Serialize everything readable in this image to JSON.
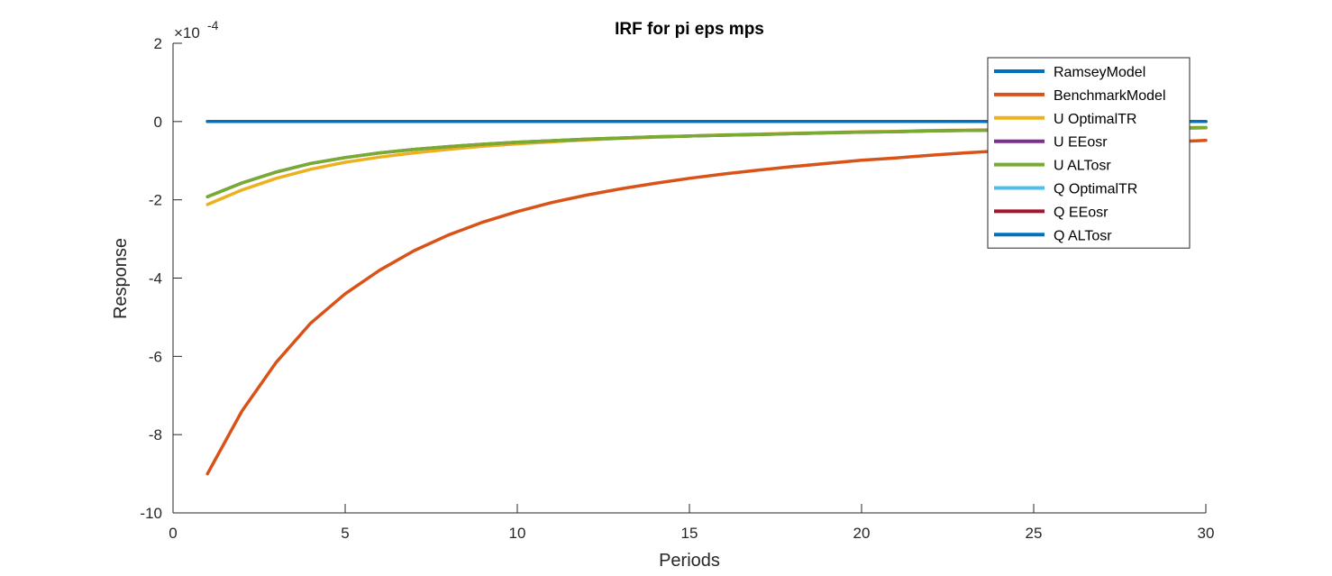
{
  "chart_data": {
    "type": "line",
    "title": "IRF for pi eps mps",
    "xlabel": "Periods",
    "ylabel": "Response",
    "xlim": [
      0,
      30
    ],
    "ylim": [
      -10,
      2
    ],
    "xticks": [
      0,
      5,
      10,
      15,
      20,
      25,
      30
    ],
    "yticks": [
      2,
      0,
      -2,
      -4,
      -6,
      -8,
      -10
    ],
    "xtick_labels": [
      "0",
      "5",
      "10",
      "15",
      "20",
      "25",
      "30"
    ],
    "ytick_labels": [
      "2",
      "0",
      "-2",
      "-4",
      "-6",
      "-8",
      "-10"
    ],
    "y_exponent_label": "×10",
    "y_exponent_power": "-4",
    "y_scale_factor": 0.0001,
    "grid": false,
    "legend_placement": "top-right",
    "x": [
      1,
      2,
      3,
      4,
      5,
      6,
      7,
      8,
      9,
      10,
      11,
      12,
      13,
      14,
      15,
      16,
      17,
      18,
      19,
      20,
      21,
      22,
      23,
      24,
      25,
      26,
      27,
      28,
      29,
      30
    ],
    "series": [
      {
        "name": "RamseyModel",
        "color": "#0072BD",
        "values": [
          0,
          0,
          0,
          0,
          0,
          0,
          0,
          0,
          0,
          0,
          0,
          0,
          0,
          0,
          0,
          0,
          0,
          0,
          0,
          0,
          0,
          0,
          0,
          0,
          0,
          0,
          0,
          0,
          0,
          0
        ]
      },
      {
        "name": "BenchmarkModel",
        "color": "#D95319",
        "values": [
          -9.0,
          -7.4,
          -6.15,
          -5.15,
          -4.4,
          -3.8,
          -3.3,
          -2.9,
          -2.57,
          -2.3,
          -2.07,
          -1.88,
          -1.72,
          -1.58,
          -1.45,
          -1.34,
          -1.24,
          -1.15,
          -1.07,
          -0.99,
          -0.93,
          -0.86,
          -0.8,
          -0.75,
          -0.7,
          -0.65,
          -0.6,
          -0.56,
          -0.52,
          -0.48
        ]
      },
      {
        "name": "U OptimalTR",
        "color": "#EDB120",
        "values": [
          -2.12,
          -1.75,
          -1.45,
          -1.22,
          -1.04,
          -0.91,
          -0.8,
          -0.71,
          -0.63,
          -0.57,
          -0.52,
          -0.47,
          -0.43,
          -0.4,
          -0.37,
          -0.34,
          -0.32,
          -0.3,
          -0.28,
          -0.26,
          -0.25,
          -0.23,
          -0.22,
          -0.21,
          -0.2,
          -0.19,
          -0.18,
          -0.17,
          -0.16,
          -0.15
        ]
      },
      {
        "name": "U EEosr",
        "color": "#7E2F8E",
        "values": [
          -1.92,
          -1.57,
          -1.29,
          -1.07,
          -0.92,
          -0.8,
          -0.71,
          -0.64,
          -0.58,
          -0.53,
          -0.49,
          -0.45,
          -0.42,
          -0.39,
          -0.37,
          -0.35,
          -0.33,
          -0.31,
          -0.29,
          -0.27,
          -0.26,
          -0.24,
          -0.23,
          -0.22,
          -0.21,
          -0.2,
          -0.19,
          -0.18,
          -0.17,
          -0.16
        ]
      },
      {
        "name": "U ALTosr",
        "color": "#77AC30",
        "values": [
          -1.92,
          -1.57,
          -1.29,
          -1.07,
          -0.92,
          -0.8,
          -0.71,
          -0.64,
          -0.58,
          -0.53,
          -0.49,
          -0.45,
          -0.42,
          -0.39,
          -0.37,
          -0.35,
          -0.33,
          -0.31,
          -0.29,
          -0.27,
          -0.26,
          -0.24,
          -0.23,
          -0.22,
          -0.21,
          -0.2,
          -0.19,
          -0.18,
          -0.17,
          -0.16
        ]
      },
      {
        "name": "Q OptimalTR",
        "color": "#4DBEEE",
        "values": [
          0,
          0,
          0,
          0,
          0,
          0,
          0,
          0,
          0,
          0,
          0,
          0,
          0,
          0,
          0,
          0,
          0,
          0,
          0,
          0,
          0,
          0,
          0,
          0,
          0,
          0,
          0,
          0,
          0,
          0
        ]
      },
      {
        "name": "Q EEosr",
        "color": "#A2142F",
        "values": [
          0,
          0,
          0,
          0,
          0,
          0,
          0,
          0,
          0,
          0,
          0,
          0,
          0,
          0,
          0,
          0,
          0,
          0,
          0,
          0,
          0,
          0,
          0,
          0,
          0,
          0,
          0,
          0,
          0,
          0
        ]
      },
      {
        "name": "Q ALTosr",
        "color": "#0072BD",
        "values": [
          0,
          0,
          0,
          0,
          0,
          0,
          0,
          0,
          0,
          0,
          0,
          0,
          0,
          0,
          0,
          0,
          0,
          0,
          0,
          0,
          0,
          0,
          0,
          0,
          0,
          0,
          0,
          0,
          0,
          0
        ]
      }
    ]
  }
}
